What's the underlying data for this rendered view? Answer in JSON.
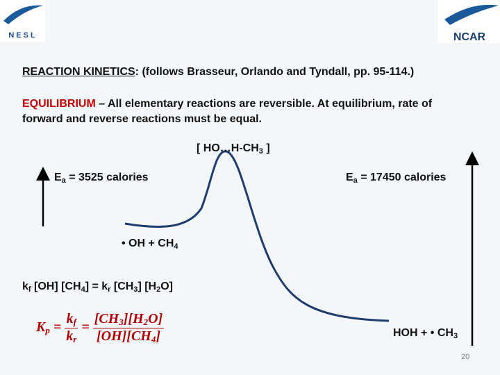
{
  "logos": {
    "left": "NESL",
    "right": "NCAR"
  },
  "heading": {
    "label": "REACTION KINETICS",
    "text": ":  (follows Brasseur, Orlando and Tyndall, pp. 95-114.)"
  },
  "equilibrium": {
    "label": "EQUILIBRIUM",
    "text": " – All elementary reactions are reversible. At equilibrium, rate of forward and reverse reactions must be equal."
  },
  "transition_state": [
    "[ HO…H-CH",
    "3",
    " ]"
  ],
  "ea_forward": [
    "E",
    "a",
    " = 3525 calories"
  ],
  "ea_reverse": [
    "E",
    "a",
    " = 17450 calories"
  ],
  "reactants": [
    "• OH + CH",
    "4"
  ],
  "products": [
    "HOH + • CH",
    "3"
  ],
  "rate_equation": [
    "k",
    "f",
    " [OH] [CH",
    "4",
    "] = k",
    "r",
    " [CH",
    "3",
    "] [H",
    "2",
    "O]"
  ],
  "kp_equation": {
    "lhs": [
      "K",
      "p",
      " ="
    ],
    "ratio": {
      "num": [
        "k",
        "f"
      ],
      "den": [
        "k",
        "r"
      ]
    },
    "equals": "=",
    "conc": {
      "num": [
        "[CH",
        "3",
        "][H",
        "2",
        "O]"
      ],
      "den": [
        "[OH][CH",
        "4",
        "]"
      ]
    }
  },
  "page_number": "20"
}
